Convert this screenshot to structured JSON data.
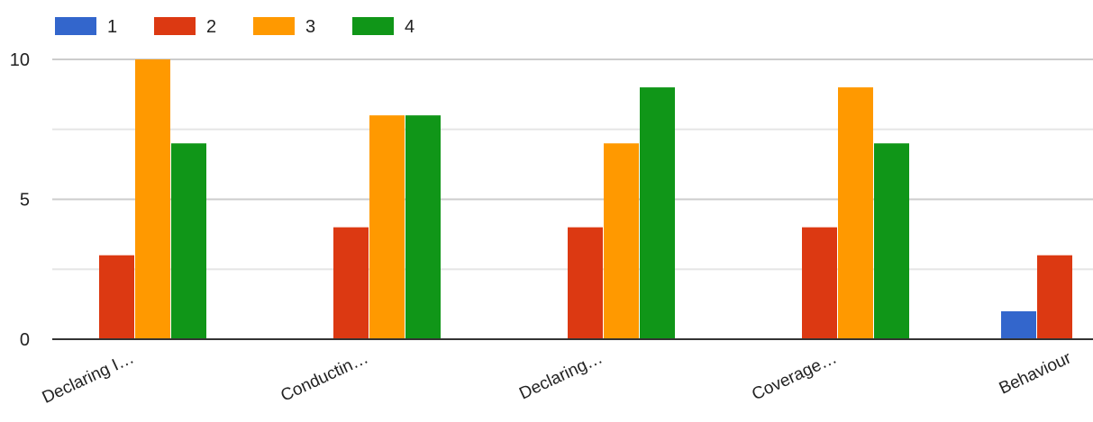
{
  "chart_data": {
    "type": "bar",
    "categories": [
      "Declaring I…",
      "Conductin…",
      "Declaring…",
      "Coverage…",
      "Behaviour"
    ],
    "series": [
      {
        "name": "1",
        "color": "#3366cc",
        "values": [
          0,
          0,
          0,
          0,
          1
        ]
      },
      {
        "name": "2",
        "color": "#dc3912",
        "values": [
          3,
          4,
          4,
          4,
          3
        ]
      },
      {
        "name": "3",
        "color": "#ff9900",
        "values": [
          10,
          8,
          7,
          9,
          null
        ]
      },
      {
        "name": "4",
        "color": "#109618",
        "values": [
          7,
          8,
          9,
          7,
          null
        ]
      }
    ],
    "yticks": [
      0,
      5,
      10
    ],
    "ylim": [
      0,
      10
    ],
    "grid": true,
    "legend_position": "top-left"
  }
}
